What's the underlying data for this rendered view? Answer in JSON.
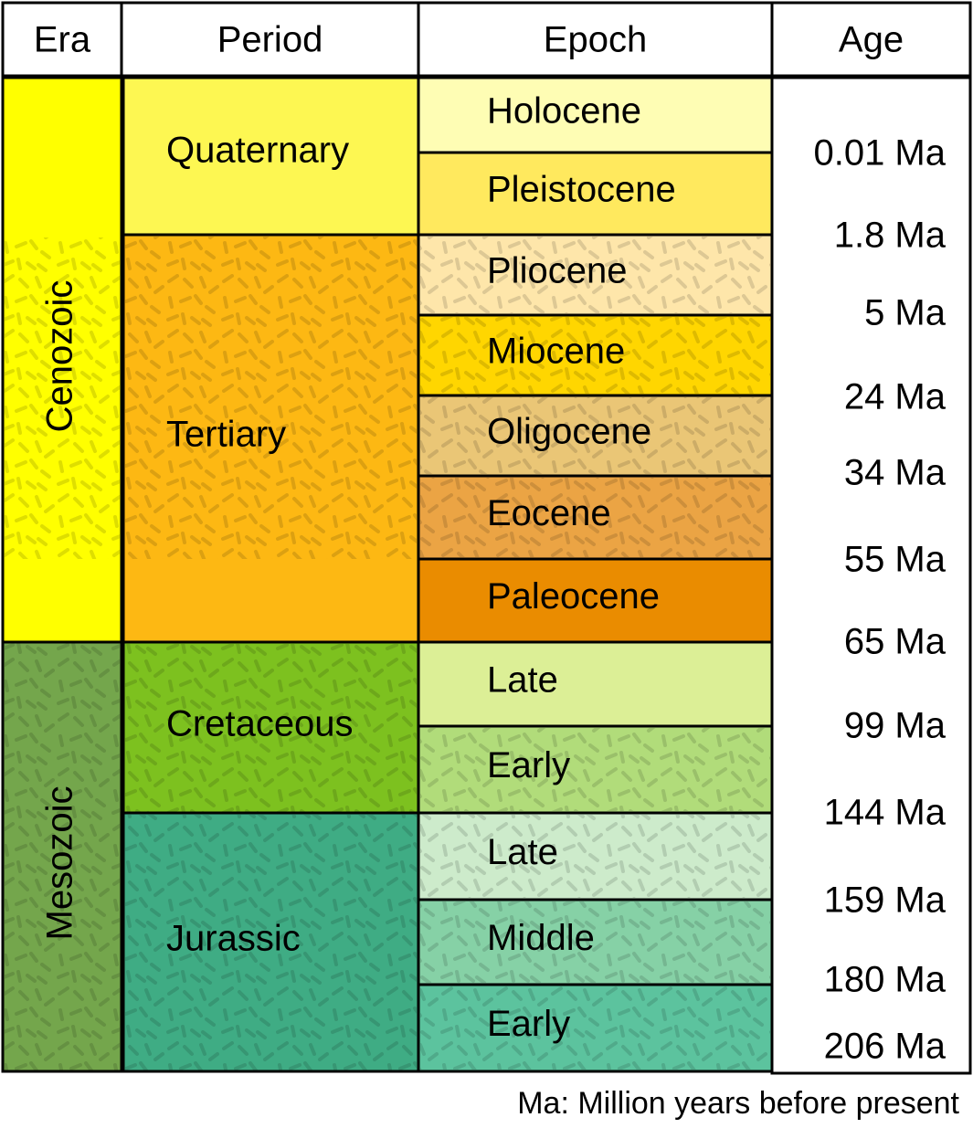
{
  "header": {
    "columns": [
      "Era",
      "Period",
      "Epoch",
      "Age"
    ]
  },
  "eras": [
    "Cenozoic",
    "Mesozoic"
  ],
  "periods": [
    "Quaternary",
    "Tertiary",
    "Cretaceous",
    "Jurassic"
  ],
  "epochs": [
    "Holocene",
    "Pleistocene",
    "Pliocene",
    "Miocene",
    "Oligocene",
    "Eocene",
    "Paleocene",
    "Late",
    "Early",
    "Late",
    "Middle",
    "Early"
  ],
  "ages": [
    "0.01 Ma",
    "1.8 Ma",
    "5 Ma",
    "24 Ma",
    "34 Ma",
    "55 Ma",
    "65 Ma",
    "99 Ma",
    "144 Ma",
    "159 Ma",
    "180 Ma",
    "206 Ma"
  ],
  "footnote": "Ma: Million years before present"
}
